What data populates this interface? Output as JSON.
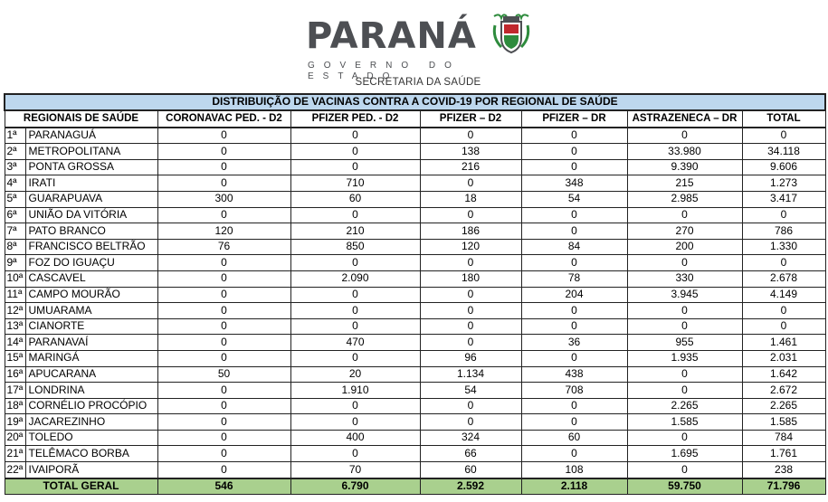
{
  "header": {
    "logo_word": "PARANÁ",
    "logo_sub": "GOVERNO DO ESTADO",
    "department": "SECRETARIA DA SAÚDE"
  },
  "colors": {
    "title_bg": "#bdd7ee",
    "total_bg": "#a9d08e",
    "logo_gray": "#4d4f53",
    "crest_green": "#2e8b3d",
    "crest_red": "#c0282d"
  },
  "table": {
    "title": "DISTRIBUIÇÃO DE VACINAS CONTRA A COVID-19 POR REGIONAL DE SAÚDE",
    "columns": [
      "REGIONAIS DE SAÚDE",
      "CORONAVAC PED. - D2",
      "PFIZER PED. - D2",
      "PFIZER – D2",
      "PFIZER – DR",
      "ASTRAZENECA – DR",
      "TOTAL"
    ],
    "rows": [
      {
        "n": "1ª",
        "name": "PARANAGUÁ",
        "v": [
          "0",
          "0",
          "0",
          "0",
          "0",
          "0"
        ]
      },
      {
        "n": "2ª",
        "name": "METROPOLITANA",
        "v": [
          "0",
          "0",
          "138",
          "0",
          "33.980",
          "34.118"
        ]
      },
      {
        "n": "3ª",
        "name": "PONTA GROSSA",
        "v": [
          "0",
          "0",
          "216",
          "0",
          "9.390",
          "9.606"
        ]
      },
      {
        "n": "4ª",
        "name": "IRATI",
        "v": [
          "0",
          "710",
          "0",
          "348",
          "215",
          "1.273"
        ]
      },
      {
        "n": "5ª",
        "name": "GUARAPUAVA",
        "v": [
          "300",
          "60",
          "18",
          "54",
          "2.985",
          "3.417"
        ]
      },
      {
        "n": "6ª",
        "name": "UNIÃO DA VITÓRIA",
        "v": [
          "0",
          "0",
          "0",
          "0",
          "0",
          "0"
        ]
      },
      {
        "n": "7ª",
        "name": "PATO BRANCO",
        "v": [
          "120",
          "210",
          "186",
          "0",
          "270",
          "786"
        ]
      },
      {
        "n": "8ª",
        "name": "FRANCISCO BELTRÃO",
        "v": [
          "76",
          "850",
          "120",
          "84",
          "200",
          "1.330"
        ]
      },
      {
        "n": "9ª",
        "name": "FOZ DO IGUAÇU",
        "v": [
          "0",
          "0",
          "0",
          "0",
          "0",
          "0"
        ]
      },
      {
        "n": "10ª",
        "name": "CASCAVEL",
        "v": [
          "0",
          "2.090",
          "180",
          "78",
          "330",
          "2.678"
        ]
      },
      {
        "n": "11ª",
        "name": "CAMPO MOURÃO",
        "v": [
          "0",
          "0",
          "0",
          "204",
          "3.945",
          "4.149"
        ]
      },
      {
        "n": "12ª",
        "name": "UMUARAMA",
        "v": [
          "0",
          "0",
          "0",
          "0",
          "0",
          "0"
        ]
      },
      {
        "n": "13ª",
        "name": "CIANORTE",
        "v": [
          "0",
          "0",
          "0",
          "0",
          "0",
          "0"
        ]
      },
      {
        "n": "14ª",
        "name": "PARANAVAÍ",
        "v": [
          "0",
          "470",
          "0",
          "36",
          "955",
          "1.461"
        ]
      },
      {
        "n": "15ª",
        "name": "MARINGÁ",
        "v": [
          "0",
          "0",
          "96",
          "0",
          "1.935",
          "2.031"
        ]
      },
      {
        "n": "16ª",
        "name": "APUCARANA",
        "v": [
          "50",
          "20",
          "1.134",
          "438",
          "0",
          "1.642"
        ]
      },
      {
        "n": "17ª",
        "name": "LONDRINA",
        "v": [
          "0",
          "1.910",
          "54",
          "708",
          "0",
          "2.672"
        ]
      },
      {
        "n": "18ª",
        "name": "CORNÉLIO PROCÓPIO",
        "v": [
          "0",
          "0",
          "0",
          "0",
          "2.265",
          "2.265"
        ]
      },
      {
        "n": "19ª",
        "name": "JACAREZINHO",
        "v": [
          "0",
          "0",
          "0",
          "0",
          "1.585",
          "1.585"
        ]
      },
      {
        "n": "20ª",
        "name": "TOLEDO",
        "v": [
          "0",
          "400",
          "324",
          "60",
          "0",
          "784"
        ]
      },
      {
        "n": "21ª",
        "name": "TELÊMACO BORBA",
        "v": [
          "0",
          "0",
          "66",
          "0",
          "1.695",
          "1.761"
        ]
      },
      {
        "n": "22ª",
        "name": "IVAIPORÃ",
        "v": [
          "0",
          "70",
          "60",
          "108",
          "0",
          "238"
        ]
      }
    ],
    "total": {
      "label": "TOTAL GERAL",
      "v": [
        "546",
        "6.790",
        "2.592",
        "2.118",
        "59.750",
        "71.796"
      ]
    }
  }
}
